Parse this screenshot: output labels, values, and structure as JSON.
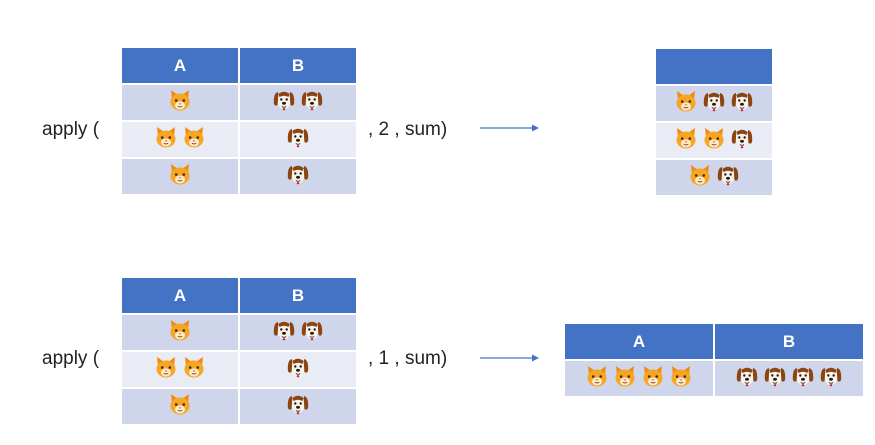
{
  "colors": {
    "header_blue": "#4472c4",
    "row_dark": "#cfd5ea",
    "row_light": "#e9ebf5",
    "arrow": "#4472c4",
    "cat_face": "#f6a623",
    "dog_ear": "#8b4513"
  },
  "examples": [
    {
      "prefix": "apply (",
      "suffix": ", 2 , sum)",
      "input": {
        "headers": [
          "A",
          "B"
        ],
        "rows": [
          {
            "cats": 1,
            "dogs": 2
          },
          {
            "cats": 2,
            "dogs": 1
          },
          {
            "cats": 1,
            "dogs": 1
          }
        ]
      },
      "output": {
        "header": "",
        "rows": [
          {
            "cats": 1,
            "dogs": 2
          },
          {
            "cats": 2,
            "dogs": 1
          },
          {
            "cats": 1,
            "dogs": 1
          }
        ]
      }
    },
    {
      "prefix": "apply (",
      "suffix": ", 1 , sum)",
      "input": {
        "headers": [
          "A",
          "B"
        ],
        "rows": [
          {
            "cats": 1,
            "dogs": 2
          },
          {
            "cats": 2,
            "dogs": 1
          },
          {
            "cats": 1,
            "dogs": 1
          }
        ]
      },
      "output": {
        "headers": [
          "A",
          "B"
        ],
        "cats": 4,
        "dogs": 4
      }
    }
  ],
  "icons": {
    "cat": "cat-face-icon",
    "dog": "dog-face-icon"
  }
}
